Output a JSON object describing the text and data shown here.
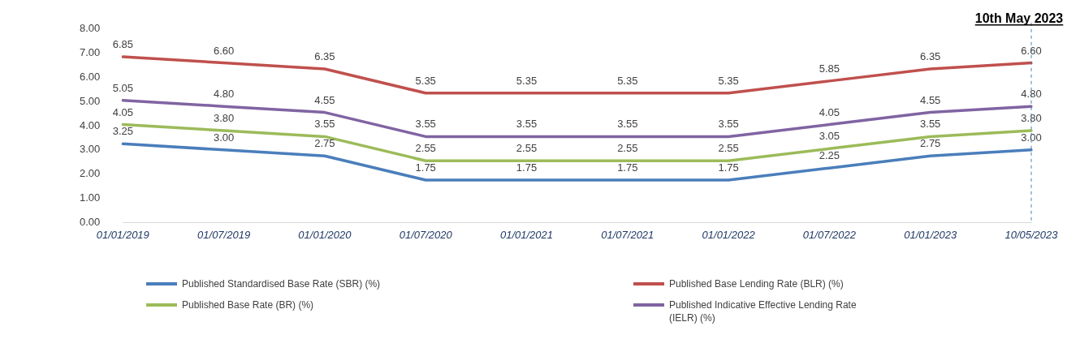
{
  "chart_data": {
    "type": "line",
    "categories": [
      "01/01/2019",
      "01/07/2019",
      "01/01/2020",
      "01/07/2020",
      "01/01/2021",
      "01/07/2021",
      "01/01/2022",
      "01/07/2022",
      "01/01/2023",
      "10/05/2023"
    ],
    "series": [
      {
        "name": "Published Standardised Base Rate (SBR) (%)",
        "color": "#4a7ebb",
        "values": [
          3.25,
          3.0,
          2.75,
          1.75,
          1.75,
          1.75,
          1.75,
          2.25,
          2.75,
          3.0
        ],
        "value_labels": [
          "3.25",
          "3.00",
          "2.75",
          "1.75",
          "1.75",
          "1.75",
          "1.75",
          "2.25",
          "2.75",
          "3.00"
        ]
      },
      {
        "name": "Published Base Lending Rate (BLR) (%)",
        "color": "#c0504d",
        "values": [
          6.85,
          6.6,
          6.35,
          5.35,
          5.35,
          5.35,
          5.35,
          5.85,
          6.35,
          6.6
        ],
        "value_labels": [
          "6.85",
          "6.60",
          "6.35",
          "5.35",
          "5.35",
          "5.35",
          "5.35",
          "5.85",
          "6.35",
          "6.60"
        ]
      },
      {
        "name": "Published Base Rate (BR) (%)",
        "color": "#9bbb59",
        "values": [
          4.05,
          3.8,
          3.55,
          2.55,
          2.55,
          2.55,
          2.55,
          3.05,
          3.55,
          3.8
        ],
        "value_labels": [
          "4.05",
          "3.80",
          "3.55",
          "2.55",
          "2.55",
          "2.55",
          "2.55",
          "3.05",
          "3.55",
          "3.80"
        ]
      },
      {
        "name": "Published Indicative Effective Lending Rate (IELR) (%)",
        "color": "#8064a2",
        "values": [
          5.05,
          4.8,
          4.55,
          3.55,
          3.55,
          3.55,
          3.55,
          4.05,
          4.55,
          4.8
        ],
        "value_labels": [
          "5.05",
          "4.80",
          "4.55",
          "3.55",
          "3.55",
          "3.55",
          "3.55",
          "4.05",
          "4.55",
          "4.80"
        ]
      }
    ],
    "ylim": [
      0,
      8
    ],
    "yticks": [
      {
        "value": 0,
        "label": "0.00"
      },
      {
        "value": 1,
        "label": "1.00"
      },
      {
        "value": 2,
        "label": "2.00"
      },
      {
        "value": 3,
        "label": "3.00"
      },
      {
        "value": 4,
        "label": "4.00"
      },
      {
        "value": 5,
        "label": "5.00"
      },
      {
        "value": 6,
        "label": "6.00"
      },
      {
        "value": 7,
        "label": "7.00"
      },
      {
        "value": 8,
        "label": "8.00"
      }
    ],
    "ref_lines": [
      {
        "axis": "x",
        "value": "10/05/2023",
        "label": "10th May 2023",
        "color": "#4a7ebb",
        "line_style": "dashed"
      }
    ],
    "grid": false,
    "legend": "bottom",
    "marker": "none",
    "line_style": "solid"
  }
}
